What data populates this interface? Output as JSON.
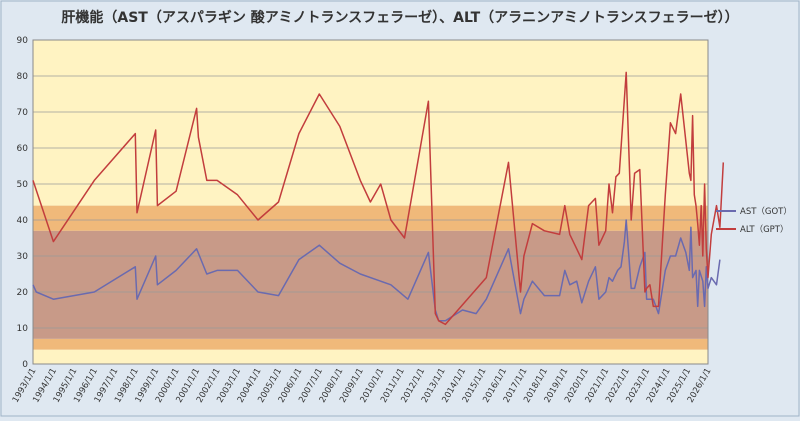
{
  "chart_data": {
    "type": "line",
    "title": "肝機能（AST（アスパラギン 酸アミノトランスフェラーゼ）、ALT（アラニンアミノトランスフェラーゼ））",
    "xlabel": "",
    "ylabel": "",
    "ylim": [
      0,
      90
    ],
    "yticks": [
      "0",
      "10",
      "20",
      "30",
      "40",
      "50",
      "60",
      "70",
      "80",
      "90"
    ],
    "xlim": [
      "1993/1/1",
      "2026/1/1"
    ],
    "xticks": [
      "1993/1/1",
      "1994/1/1",
      "1995/1/1",
      "1996/1/1",
      "1997/1/1",
      "1998/1/1",
      "1999/1/1",
      "2000/1/1",
      "2001/1/1",
      "2002/1/1",
      "2003/1/1",
      "2004/1/1",
      "2005/1/1",
      "2006/1/1",
      "2007/1/1",
      "2008/1/1",
      "2009/1/1",
      "2010/1/1",
      "2011/1/1",
      "2012/1/1",
      "2013/1/1",
      "2014/1/1",
      "2015/1/1",
      "2016/1/1",
      "2017/1/1",
      "2018/1/1",
      "2019/1/1",
      "2020/1/1",
      "2021/1/1",
      "2022/1/1",
      "2023/1/1",
      "2024/1/1",
      "2025/1/1",
      "2026/1/1"
    ],
    "grid": true,
    "legend": "right",
    "bands": [
      {
        "from": 0,
        "to": 4,
        "color": "#fff3c2"
      },
      {
        "from": 4,
        "to": 7,
        "color": "#f0b97a"
      },
      {
        "from": 7,
        "to": 37,
        "color": "#c89a88"
      },
      {
        "from": 37,
        "to": 44,
        "color": "#f0b97a"
      },
      {
        "from": 44,
        "to": 90,
        "color": "#fff3c2"
      }
    ],
    "series": [
      {
        "name": "AST（GOT）",
        "color": "#6a6aaf",
        "points": [
          [
            "1993/1/1",
            22
          ],
          [
            "1993/3/1",
            20
          ],
          [
            "1994/1/1",
            18
          ],
          [
            "1996/1/1",
            20
          ],
          [
            "1998/1/1",
            27
          ],
          [
            "1998/2/1",
            18
          ],
          [
            "1999/1/1",
            30
          ],
          [
            "1999/2/1",
            22
          ],
          [
            "2000/1/1",
            26
          ],
          [
            "2001/1/1",
            32
          ],
          [
            "2001/7/1",
            25
          ],
          [
            "2002/1/1",
            26
          ],
          [
            "2003/1/1",
            26
          ],
          [
            "2004/1/1",
            20
          ],
          [
            "2005/1/1",
            19
          ],
          [
            "2006/1/1",
            29
          ],
          [
            "2007/1/1",
            33
          ],
          [
            "2008/1/1",
            28
          ],
          [
            "2009/1/1",
            25
          ],
          [
            "2010/1/1",
            23
          ],
          [
            "2010/7/1",
            22
          ],
          [
            "2011/5/1",
            18
          ],
          [
            "2012/5/1",
            31
          ],
          [
            "2012/9/1",
            15
          ],
          [
            "2012/11/1",
            12
          ],
          [
            "2013/3/1",
            12
          ],
          [
            "2014/1/1",
            15
          ],
          [
            "2014/9/1",
            14
          ],
          [
            "2015/3/1",
            18
          ],
          [
            "2016/4/1",
            32
          ],
          [
            "2016/11/1",
            14
          ],
          [
            "2017/1/1",
            18
          ],
          [
            "2017/6/1",
            23
          ],
          [
            "2018/1/1",
            19
          ],
          [
            "2018/10/1",
            19
          ],
          [
            "2019/1/1",
            26
          ],
          [
            "2019/4/1",
            22
          ],
          [
            "2019/8/1",
            23
          ],
          [
            "2019/11/1",
            17
          ],
          [
            "2020/3/1",
            23
          ],
          [
            "2020/7/1",
            27
          ],
          [
            "2020/9/1",
            18
          ],
          [
            "2021/1/1",
            20
          ],
          [
            "2021/3/1",
            24
          ],
          [
            "2021/5/1",
            23
          ],
          [
            "2021/8/1",
            26
          ],
          [
            "2021/10/1",
            27
          ],
          [
            "2021/12/1",
            34
          ],
          [
            "2022/1/1",
            40
          ],
          [
            "2022/4/1",
            21
          ],
          [
            "2022/6/1",
            21
          ],
          [
            "2022/9/1",
            27
          ],
          [
            "2022/12/1",
            31
          ],
          [
            "2023/1/1",
            18
          ],
          [
            "2023/3/1",
            18
          ],
          [
            "2023/5/1",
            18
          ],
          [
            "2023/8/1",
            14
          ],
          [
            "2023/12/1",
            26
          ],
          [
            "2024/3/1",
            30
          ],
          [
            "2024/6/1",
            30
          ],
          [
            "2024/9/1",
            35
          ],
          [
            "2024/12/1",
            31
          ],
          [
            "2025/2/1",
            26
          ],
          [
            "2025/3/1",
            38
          ],
          [
            "2025/4/1",
            24
          ],
          [
            "2025/6/1",
            26
          ],
          [
            "2025/7/1",
            16
          ],
          [
            "2025/8/1",
            26
          ],
          [
            "2025/10/1",
            23
          ],
          [
            "2025/11/1",
            16
          ],
          [
            "2025/12/1",
            27
          ],
          [
            "2026/1/1",
            21
          ],
          [
            "2026/3/1",
            24
          ],
          [
            "2026/6/1",
            22
          ],
          [
            "2026/8/1",
            29
          ]
        ]
      },
      {
        "name": "ALT（GPT）",
        "color": "#c23d3d",
        "points": [
          [
            "1993/1/1",
            51
          ],
          [
            "1994/1/1",
            34
          ],
          [
            "1996/1/1",
            51
          ],
          [
            "1998/1/1",
            64
          ],
          [
            "1998/2/1",
            42
          ],
          [
            "1999/1/1",
            65
          ],
          [
            "1999/2/1",
            44
          ],
          [
            "2000/1/1",
            48
          ],
          [
            "2001/1/1",
            71
          ],
          [
            "2001/2/1",
            63
          ],
          [
            "2001/7/1",
            51
          ],
          [
            "2002/1/1",
            51
          ],
          [
            "2003/1/1",
            47
          ],
          [
            "2004/1/1",
            40
          ],
          [
            "2005/1/1",
            45
          ],
          [
            "2006/1/1",
            64
          ],
          [
            "2007/1/1",
            75
          ],
          [
            "2008/1/1",
            66
          ],
          [
            "2009/1/1",
            51
          ],
          [
            "2009/7/1",
            45
          ],
          [
            "2010/1/1",
            50
          ],
          [
            "2010/7/1",
            40
          ],
          [
            "2011/3/1",
            35
          ],
          [
            "2012/5/1",
            73
          ],
          [
            "2012/9/1",
            14
          ],
          [
            "2012/11/1",
            12
          ],
          [
            "2013/3/1",
            11
          ],
          [
            "2015/3/1",
            24
          ],
          [
            "2016/4/1",
            56
          ],
          [
            "2016/11/1",
            20
          ],
          [
            "2017/1/1",
            30
          ],
          [
            "2017/6/1",
            39
          ],
          [
            "2018/1/1",
            37
          ],
          [
            "2018/10/1",
            36
          ],
          [
            "2019/1/1",
            44
          ],
          [
            "2019/4/1",
            36
          ],
          [
            "2019/8/1",
            32
          ],
          [
            "2019/11/1",
            29
          ],
          [
            "2020/3/1",
            44
          ],
          [
            "2020/7/1",
            46
          ],
          [
            "2020/9/1",
            33
          ],
          [
            "2021/1/1",
            37
          ],
          [
            "2021/3/1",
            50
          ],
          [
            "2021/5/1",
            42
          ],
          [
            "2021/7/1",
            52
          ],
          [
            "2021/9/1",
            53
          ],
          [
            "2022/1/1",
            81
          ],
          [
            "2022/4/1",
            40
          ],
          [
            "2022/6/1",
            53
          ],
          [
            "2022/9/1",
            54
          ],
          [
            "2022/12/1",
            20
          ],
          [
            "2023/1/1",
            21
          ],
          [
            "2023/3/1",
            22
          ],
          [
            "2023/5/1",
            16
          ],
          [
            "2023/8/1",
            16
          ],
          [
            "2023/12/1",
            47
          ],
          [
            "2024/3/1",
            67
          ],
          [
            "2024/6/1",
            64
          ],
          [
            "2024/9/1",
            75
          ],
          [
            "2024/12/1",
            62
          ],
          [
            "2025/2/1",
            53
          ],
          [
            "2025/3/1",
            51
          ],
          [
            "2025/4/1",
            69
          ],
          [
            "2025/5/1",
            47
          ],
          [
            "2025/6/1",
            44
          ],
          [
            "2025/7/1",
            39
          ],
          [
            "2025/8/1",
            33
          ],
          [
            "2025/9/1",
            44
          ],
          [
            "2025/10/1",
            30
          ],
          [
            "2025/11/1",
            50
          ],
          [
            "2025/12/1",
            32
          ],
          [
            "2026/1/1",
            24
          ],
          [
            "2026/3/1",
            36
          ],
          [
            "2026/6/1",
            44
          ],
          [
            "2026/8/1",
            38
          ],
          [
            "2026/10/1",
            56
          ]
        ]
      }
    ]
  }
}
